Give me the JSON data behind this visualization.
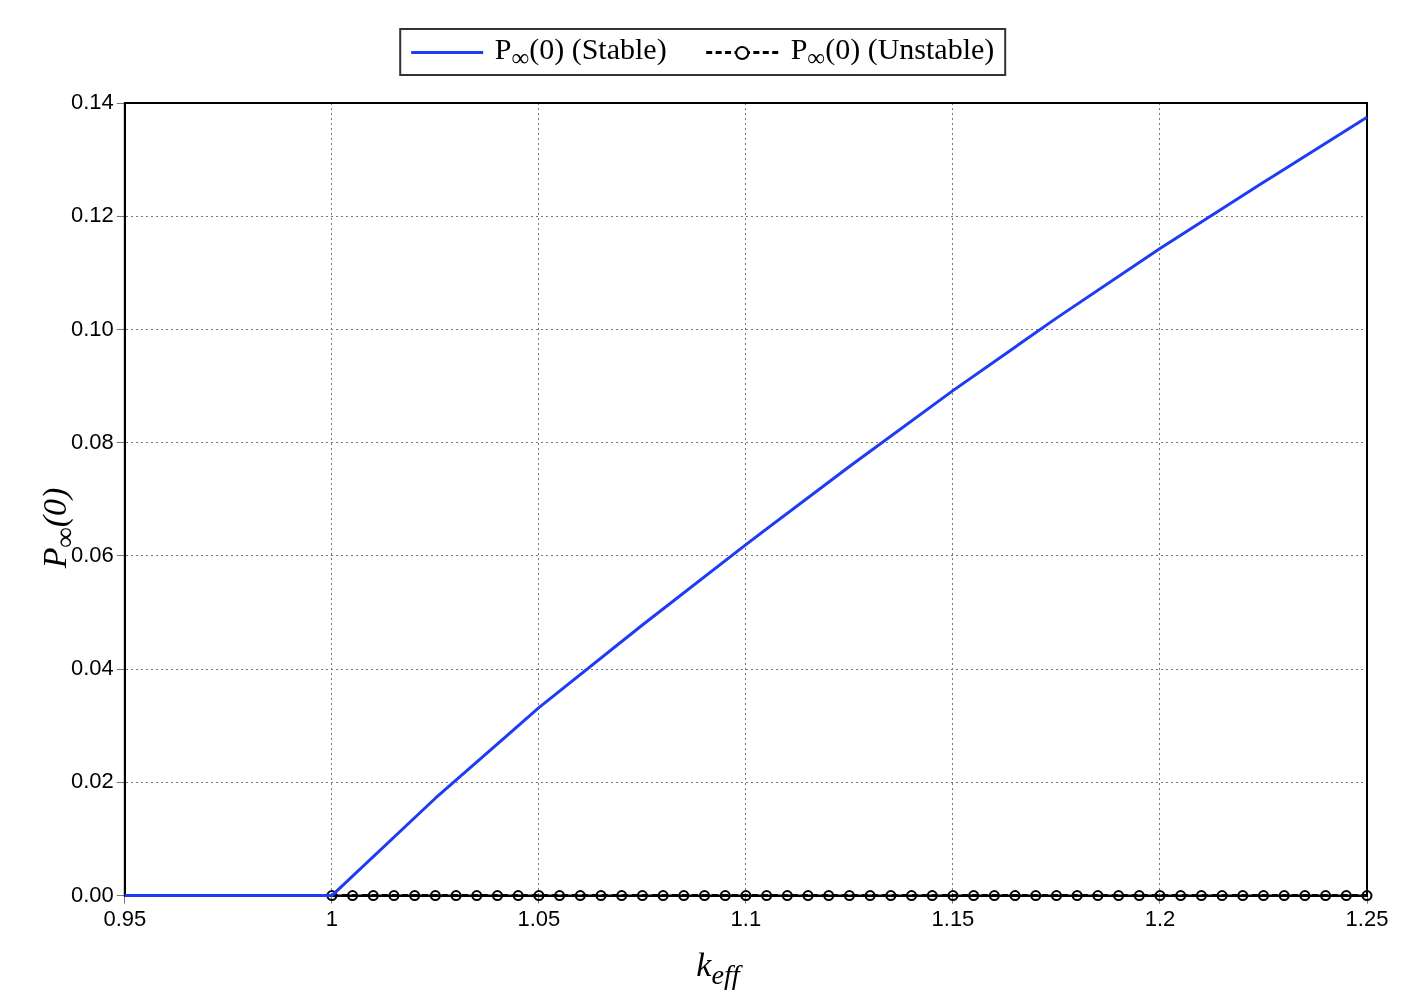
{
  "chart_data": {
    "type": "line",
    "xlabel": "k$_{eff}$",
    "ylabel": "P$_{∞}$(0)",
    "xlim": [
      0.95,
      1.25
    ],
    "xticks": [
      0.95,
      1,
      1.05,
      1.1,
      1.15,
      1.2,
      1.25
    ],
    "ylim": [
      0,
      0.14
    ],
    "yticks": [
      {
        "value": 0,
        "label": "0.00"
      },
      {
        "value": 0.02,
        "label": "0.02"
      },
      {
        "value": 0.04,
        "label": "0.04"
      },
      {
        "value": 0.06,
        "label": "0.06"
      },
      {
        "value": 0.08,
        "label": "0.08"
      },
      {
        "value": 0.1,
        "label": "0.10"
      },
      {
        "value": 0.12,
        "label": "0.12"
      },
      {
        "value": 0.14,
        "label": "0.14"
      }
    ],
    "grid": true,
    "legend": "top",
    "series": [
      {
        "name": "P$_{∞}$(0) (Stable)",
        "type": "line",
        "color": "#1f3cf5",
        "marker": "none",
        "line_style": "solid",
        "x": [
          0.95,
          1,
          1.025,
          1.05,
          1.075,
          1.1,
          1.125,
          1.15,
          1.175,
          1.2,
          1.225,
          1.25
        ],
        "values": [
          0,
          0,
          0.0172,
          0.0332,
          0.0478,
          0.062,
          0.0758,
          0.0892,
          0.102,
          0.1143,
          0.126,
          0.1375
        ]
      },
      {
        "name": "P$_{∞}$(0) (Unstable)",
        "type": "line",
        "color": "#000000",
        "marker": "circle",
        "line_style": "dashed",
        "x": [
          1,
          1.005,
          1.01,
          1.015,
          1.02,
          1.025,
          1.03,
          1.035,
          1.04,
          1.045,
          1.05,
          1.055,
          1.06,
          1.065,
          1.07,
          1.075,
          1.08,
          1.085,
          1.09,
          1.095,
          1.1,
          1.105,
          1.11,
          1.115,
          1.12,
          1.125,
          1.13,
          1.135,
          1.14,
          1.145,
          1.15,
          1.155,
          1.16,
          1.165,
          1.17,
          1.175,
          1.18,
          1.185,
          1.19,
          1.195,
          1.2,
          1.205,
          1.21,
          1.215,
          1.22,
          1.225,
          1.23,
          1.235,
          1.24,
          1.245,
          1.25
        ],
        "values": [
          0,
          0,
          0,
          0,
          0,
          0,
          0,
          0,
          0,
          0,
          0,
          0,
          0,
          0,
          0,
          0,
          0,
          0,
          0,
          0,
          0,
          0,
          0,
          0,
          0,
          0,
          0,
          0,
          0,
          0,
          0,
          0,
          0,
          0,
          0,
          0,
          0,
          0,
          0,
          0,
          0,
          0,
          0,
          0,
          0,
          0,
          0,
          0,
          0,
          0,
          0
        ]
      }
    ]
  }
}
